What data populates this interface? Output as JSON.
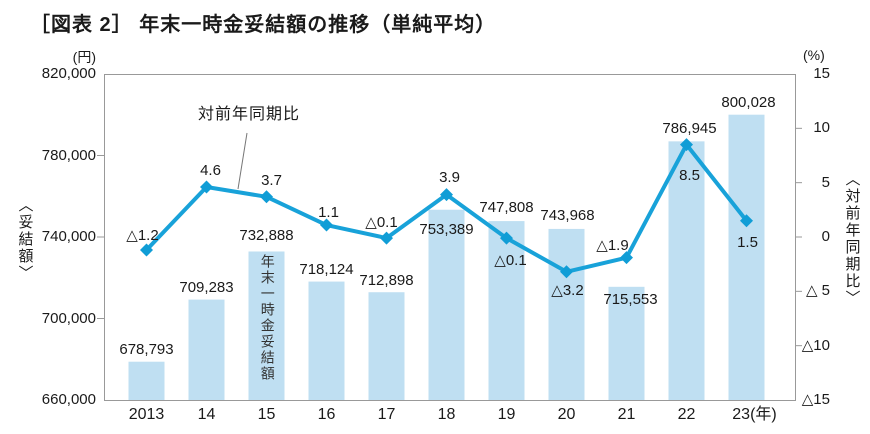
{
  "title": "［図表 2］ 年末一時金妥結額の推移（単純平均）",
  "chart_data": {
    "type": "bar+line",
    "categories": [
      "2013",
      "14",
      "15",
      "16",
      "17",
      "18",
      "19",
      "20",
      "21",
      "22",
      "23(年)"
    ],
    "series": [
      {
        "name": "年末一時金妥結額",
        "type": "bar",
        "axis": "left",
        "values": [
          678793,
          709283,
          732888,
          718124,
          712898,
          753389,
          747808,
          743968,
          715553,
          786945,
          800028
        ],
        "labels": [
          "678,793",
          "709,283",
          "732,888",
          "718,124",
          "712,898",
          "753,389",
          "747,808",
          "743,968",
          "715,553",
          "786,945",
          "800,028"
        ]
      },
      {
        "name": "対前年同期比",
        "type": "line",
        "axis": "right",
        "values": [
          -1.2,
          4.6,
          3.7,
          1.1,
          -0.1,
          3.9,
          -0.1,
          -3.2,
          -1.9,
          8.5,
          1.5
        ],
        "labels": [
          "△1.2",
          "4.6",
          "3.7",
          "1.1",
          "△0.1",
          "3.9",
          "△0.1",
          "△3.2",
          "△1.9",
          "8.5",
          "1.5"
        ]
      }
    ],
    "left_axis": {
      "unit": "(円)",
      "title": "〈妥結額〉",
      "min": 660000,
      "max": 820000,
      "tick_labels": [
        "820,000",
        "780,000",
        "740,000",
        "700,000",
        "660,000"
      ]
    },
    "right_axis": {
      "unit": "(%)",
      "title": "〈対前年同期比〉",
      "min": -15,
      "max": 15,
      "tick_labels": [
        "15",
        "10",
        "5",
        "0",
        "△ 5",
        "△10",
        "△15"
      ]
    },
    "annotation": {
      "text": "対前年同期比"
    },
    "bar_inner_label": "年末一時金妥結額",
    "grid": false,
    "legend_position": "none",
    "colors": {
      "bar": "#bfdff2",
      "line": "#18a2d9",
      "marker": "#109dd6",
      "text": "#1a1a1a",
      "axis": "#999999",
      "annotation_line": "#777777"
    }
  }
}
